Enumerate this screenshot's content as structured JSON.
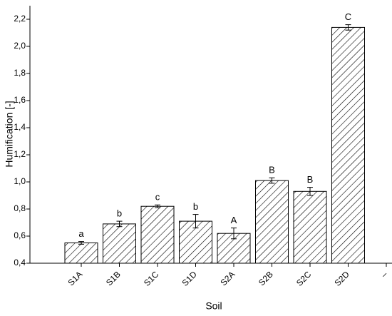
{
  "chart_data": {
    "type": "bar",
    "x_label": "Soil",
    "y_label": "Humification [-]",
    "categories": [
      "S1A",
      "S1B",
      "S1C",
      "S1D",
      "S2A",
      "S2B",
      "S2C",
      "S2D",
      "–"
    ],
    "values": [
      0.55,
      0.69,
      0.82,
      0.71,
      0.62,
      1.01,
      0.93,
      2.14,
      null
    ],
    "errors": [
      0.01,
      0.02,
      0.01,
      0.05,
      0.04,
      0.02,
      0.03,
      0.02,
      null
    ],
    "letters": [
      "a",
      "b",
      "c",
      "b",
      "A",
      "B",
      "B",
      "C",
      null
    ],
    "color": "#000000",
    "ylim": [
      0.4,
      2.3
    ],
    "yticks": [
      {
        "value": 0.4,
        "label": "0,4"
      },
      {
        "value": 0.6,
        "label": "0,6"
      },
      {
        "value": 0.8,
        "label": "0,8"
      },
      {
        "value": 1.0,
        "label": "1,0"
      },
      {
        "value": 1.2,
        "label": "1,2"
      },
      {
        "value": 1.4,
        "label": "1,4"
      },
      {
        "value": 1.6,
        "label": "1,6"
      },
      {
        "value": 1.8,
        "label": "1,8"
      },
      {
        "value": 2.0,
        "label": "2,0"
      },
      {
        "value": 2.2,
        "label": "2,2"
      }
    ]
  }
}
